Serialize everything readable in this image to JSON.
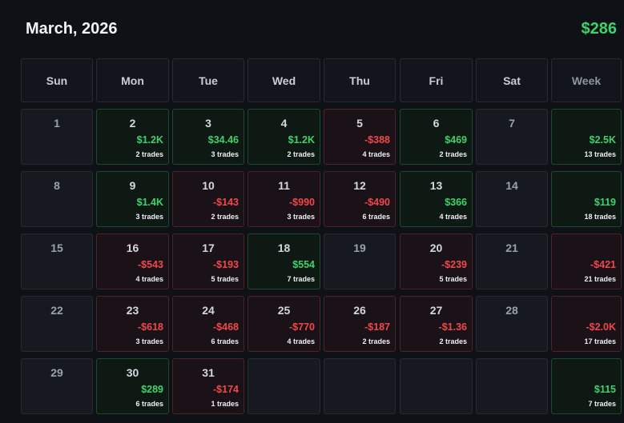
{
  "header": {
    "title": "March, 2026",
    "total": "$286"
  },
  "columns": [
    "Sun",
    "Mon",
    "Tue",
    "Wed",
    "Thu",
    "Fri",
    "Sat",
    "Week"
  ],
  "weeks": [
    {
      "days": [
        {
          "day": "1"
        },
        {
          "day": "2",
          "pnl": "$1.2K",
          "trades": "2 trades",
          "status": "pos"
        },
        {
          "day": "3",
          "pnl": "$34.46",
          "trades": "3 trades",
          "status": "pos"
        },
        {
          "day": "4",
          "pnl": "$1.2K",
          "trades": "2 trades",
          "status": "pos"
        },
        {
          "day": "5",
          "pnl": "-$388",
          "trades": "4 trades",
          "status": "neg"
        },
        {
          "day": "6",
          "pnl": "$469",
          "trades": "2 trades",
          "status": "pos"
        },
        {
          "day": "7"
        }
      ],
      "week": {
        "pnl": "$2.5K",
        "trades": "13 trades",
        "status": "pos"
      }
    },
    {
      "days": [
        {
          "day": "8"
        },
        {
          "day": "9",
          "pnl": "$1.4K",
          "trades": "3 trades",
          "status": "pos"
        },
        {
          "day": "10",
          "pnl": "-$143",
          "trades": "2 trades",
          "status": "neg"
        },
        {
          "day": "11",
          "pnl": "-$990",
          "trades": "3 trades",
          "status": "neg"
        },
        {
          "day": "12",
          "pnl": "-$490",
          "trades": "6 trades",
          "status": "neg"
        },
        {
          "day": "13",
          "pnl": "$366",
          "trades": "4 trades",
          "status": "pos"
        },
        {
          "day": "14"
        }
      ],
      "week": {
        "pnl": "$119",
        "trades": "18 trades",
        "status": "pos"
      }
    },
    {
      "days": [
        {
          "day": "15"
        },
        {
          "day": "16",
          "pnl": "-$543",
          "trades": "4 trades",
          "status": "neg"
        },
        {
          "day": "17",
          "pnl": "-$193",
          "trades": "5 trades",
          "status": "neg"
        },
        {
          "day": "18",
          "pnl": "$554",
          "trades": "7 trades",
          "status": "pos"
        },
        {
          "day": "19"
        },
        {
          "day": "20",
          "pnl": "-$239",
          "trades": "5 trades",
          "status": "neg"
        },
        {
          "day": "21"
        }
      ],
      "week": {
        "pnl": "-$421",
        "trades": "21 trades",
        "status": "neg"
      }
    },
    {
      "days": [
        {
          "day": "22"
        },
        {
          "day": "23",
          "pnl": "-$618",
          "trades": "3 trades",
          "status": "neg"
        },
        {
          "day": "24",
          "pnl": "-$468",
          "trades": "6 trades",
          "status": "neg"
        },
        {
          "day": "25",
          "pnl": "-$770",
          "trades": "4 trades",
          "status": "neg"
        },
        {
          "day": "26",
          "pnl": "-$187",
          "trades": "2 trades",
          "status": "neg"
        },
        {
          "day": "27",
          "pnl": "-$1.36",
          "trades": "2 trades",
          "status": "neg"
        },
        {
          "day": "28"
        }
      ],
      "week": {
        "pnl": "-$2.0K",
        "trades": "17 trades",
        "status": "neg"
      }
    },
    {
      "days": [
        {
          "day": "29"
        },
        {
          "day": "30",
          "pnl": "$289",
          "trades": "6 trades",
          "status": "pos"
        },
        {
          "day": "31",
          "pnl": "-$174",
          "trades": "1 trades",
          "status": "neg"
        },
        {},
        {},
        {},
        {}
      ],
      "week": {
        "pnl": "$115",
        "trades": "7 trades",
        "status": "pos"
      }
    }
  ]
}
